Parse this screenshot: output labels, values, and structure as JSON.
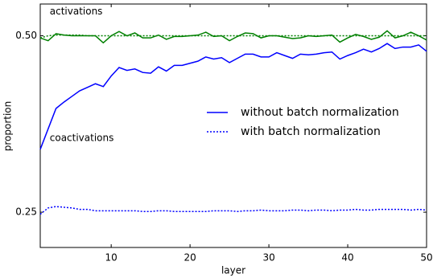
{
  "chart_data": {
    "type": "line",
    "x_label": "layer",
    "y_label": "proportion",
    "annotations": [
      {
        "text": "activations",
        "x": 2.2,
        "y": 0.534
      },
      {
        "text": "coactivations",
        "x": 2.2,
        "y": 0.355
      }
    ],
    "x": [
      1,
      2,
      3,
      4,
      5,
      6,
      7,
      8,
      9,
      10,
      11,
      12,
      13,
      14,
      15,
      16,
      17,
      18,
      19,
      20,
      21,
      22,
      23,
      24,
      25,
      26,
      27,
      28,
      29,
      30,
      31,
      32,
      33,
      34,
      35,
      36,
      37,
      38,
      39,
      40,
      41,
      42,
      43,
      44,
      45,
      46,
      47,
      48,
      49,
      50
    ],
    "series": [
      {
        "color": "#008000",
        "style": "solid",
        "values": [
          0.497,
          0.493,
          0.503,
          0.501,
          0.5,
          0.5,
          0.5,
          0.5,
          0.49,
          0.5,
          0.506,
          0.5,
          0.504,
          0.497,
          0.497,
          0.501,
          0.495,
          0.499,
          0.499,
          0.5,
          0.501,
          0.505,
          0.499,
          0.5,
          0.493,
          0.499,
          0.504,
          0.503,
          0.497,
          0.5,
          0.5,
          0.498,
          0.496,
          0.497,
          0.5,
          0.499,
          0.5,
          0.501,
          0.491,
          0.497,
          0.502,
          0.499,
          0.495,
          0.498,
          0.507,
          0.497,
          0.5,
          0.505,
          0.5,
          0.494
        ]
      },
      {
        "color": "#008000",
        "style": "dotted",
        "values": [
          0.497,
          0.5,
          0.501,
          0.501,
          0.501,
          0.501,
          0.5,
          0.5,
          0.5,
          0.5,
          0.5,
          0.5,
          0.5,
          0.5,
          0.5,
          0.5,
          0.5,
          0.5,
          0.5,
          0.5,
          0.5,
          0.5,
          0.5,
          0.5,
          0.5,
          0.5,
          0.5,
          0.5,
          0.5,
          0.5,
          0.5,
          0.5,
          0.5,
          0.5,
          0.5,
          0.5,
          0.5,
          0.5,
          0.5,
          0.5,
          0.5,
          0.5,
          0.5,
          0.5,
          0.5,
          0.5,
          0.5,
          0.5,
          0.5,
          0.5
        ]
      },
      {
        "color": "#0000ff",
        "style": "solid",
        "values": [
          0.339,
          0.368,
          0.397,
          0.406,
          0.414,
          0.422,
          0.427,
          0.432,
          0.428,
          0.443,
          0.455,
          0.451,
          0.453,
          0.448,
          0.447,
          0.456,
          0.45,
          0.458,
          0.458,
          0.461,
          0.464,
          0.47,
          0.467,
          0.469,
          0.462,
          0.468,
          0.474,
          0.474,
          0.47,
          0.47,
          0.476,
          0.472,
          0.468,
          0.474,
          0.473,
          0.474,
          0.476,
          0.477,
          0.467,
          0.472,
          0.476,
          0.481,
          0.477,
          0.482,
          0.489,
          0.482,
          0.484,
          0.484,
          0.487,
          0.478
        ]
      },
      {
        "color": "#0000ff",
        "style": "dotted",
        "values": [
          0.247,
          0.256,
          0.258,
          0.257,
          0.256,
          0.254,
          0.254,
          0.252,
          0.252,
          0.252,
          0.252,
          0.252,
          0.252,
          0.251,
          0.251,
          0.252,
          0.252,
          0.251,
          0.251,
          0.251,
          0.251,
          0.251,
          0.252,
          0.252,
          0.252,
          0.251,
          0.252,
          0.252,
          0.253,
          0.252,
          0.252,
          0.252,
          0.253,
          0.253,
          0.252,
          0.253,
          0.253,
          0.252,
          0.253,
          0.253,
          0.254,
          0.253,
          0.253,
          0.254,
          0.254,
          0.254,
          0.254,
          0.253,
          0.254,
          0.253
        ]
      }
    ],
    "legend": [
      {
        "label": "without batch normalization",
        "style": "solid",
        "color": "#0000ff"
      },
      {
        "label": "with batch normalization",
        "style": "dotted",
        "color": "#0000ff"
      }
    ],
    "legend_position": "right",
    "xlim": [
      1,
      50
    ],
    "xticks": [
      10,
      20,
      30,
      40,
      50
    ],
    "ylim": [
      0.2,
      0.545
    ],
    "yticks": [
      {
        "value": 0.25,
        "label": "0.25"
      },
      {
        "value": 0.5,
        "label": "0.50"
      }
    ],
    "grid": false
  }
}
